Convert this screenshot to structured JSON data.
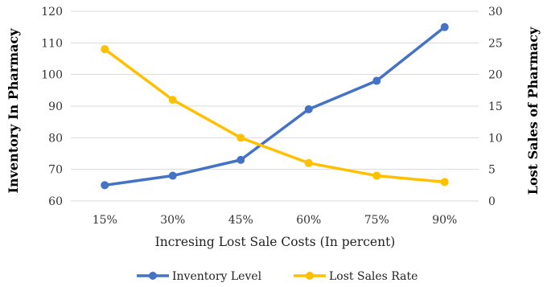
{
  "chart_data": {
    "type": "line",
    "categories": [
      "15%",
      "30%",
      "45%",
      "60%",
      "75%",
      "90%"
    ],
    "xlabel": "Incresing Lost Sale Costs (In percent)",
    "ylabel": "Inventory In Pharmacy",
    "y2label": "Lost Sales of Pharmacy",
    "ylim": [
      60,
      120
    ],
    "yticks": [
      60,
      70,
      80,
      90,
      100,
      110,
      120
    ],
    "y2lim": [
      0,
      30
    ],
    "y2ticks": [
      0,
      5,
      10,
      15,
      20,
      25,
      30
    ],
    "grid": true,
    "legend_position": "bottom",
    "series": [
      {
        "name": "Inventory Level",
        "axis": "left",
        "color": "#4472c4",
        "values": [
          65,
          68,
          73,
          89,
          98,
          115
        ]
      },
      {
        "name": "Lost Sales Rate",
        "axis": "right",
        "color": "#ffc000",
        "values": [
          24,
          16,
          10,
          6,
          4,
          3
        ]
      }
    ]
  }
}
